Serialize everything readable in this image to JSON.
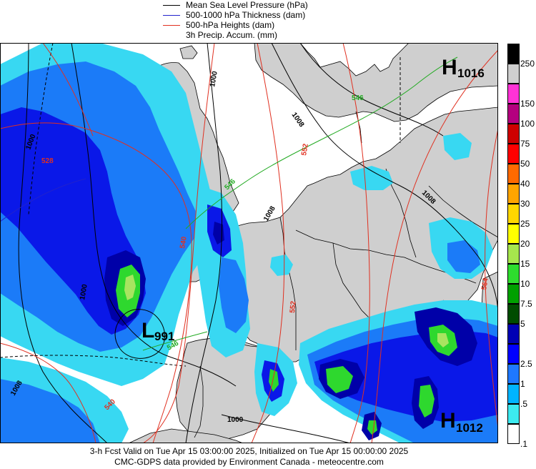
{
  "legend": [
    {
      "label": "Mean Sea Level Pressure (hPa)",
      "color": "#000000"
    },
    {
      "label": "500-1000 hPa Thickness (dam)",
      "color": "#2222cc"
    },
    {
      "label": "500-hPa Heights (dam)",
      "color": "#e03020"
    },
    {
      "label": "3h Precip. Accum. (mm)",
      "color": ""
    }
  ],
  "pressure_centers": [
    {
      "type": "H",
      "value": "1016"
    },
    {
      "type": "L",
      "value": "991"
    },
    {
      "type": "H",
      "value": "1012"
    }
  ],
  "contour_labels": {
    "mslp": [
      "1000",
      "1008",
      "1000",
      "1000",
      "1008",
      "1008",
      "1000",
      "1008"
    ],
    "thickness": [
      "546",
      "546",
      "546"
    ],
    "heights": [
      "528",
      "552",
      "540",
      "552",
      "540",
      "564"
    ]
  },
  "colorbar": [
    {
      "label": "250",
      "color": "#000000"
    },
    {
      "label": "",
      "color": "#cfcfcf"
    },
    {
      "label": "150",
      "color": "#ff33d6"
    },
    {
      "label": "100",
      "color": "#b4007f"
    },
    {
      "label": "75",
      "color": "#ce0000"
    },
    {
      "label": "50",
      "color": "#ff0000"
    },
    {
      "label": "40",
      "color": "#ff6a00"
    },
    {
      "label": "30",
      "color": "#ffa500"
    },
    {
      "label": "25",
      "color": "#ffd700"
    },
    {
      "label": "20",
      "color": "#ffff00"
    },
    {
      "label": "15",
      "color": "#a6e64d"
    },
    {
      "label": "10",
      "color": "#2edc2e"
    },
    {
      "label": "7.5",
      "color": "#00a000"
    },
    {
      "label": "5",
      "color": "#004c00"
    },
    {
      "label": "",
      "color": "#0000b4"
    },
    {
      "label": "2.5",
      "color": "#0000ff"
    },
    {
      "label": "1",
      "color": "#1e78ff"
    },
    {
      "label": ".5",
      "color": "#00b4ff"
    },
    {
      "label": "",
      "color": "#3ceaf0"
    },
    {
      "label": ".1",
      "color": "#ffffff"
    }
  ],
  "colors": {
    "land": "#cfcfcf",
    "sea": "#ffffff",
    "precip_light": "#38d8f2",
    "precip_mid": "#1b7bf8",
    "precip_heavy": "#0a18e8",
    "precip_vheavy": "#0000a8",
    "precip_green": "#2ed82e",
    "precip_lightgreen": "#a8e460"
  },
  "footer": {
    "line1": "3-h Fcst Valid on Tue Apr 15 03:00:00 2025, Initialized on Tue Apr 15 00:00:00 2025",
    "line2": "CMC-GDPS data provided by Environment Canada - meteocentre.com"
  }
}
